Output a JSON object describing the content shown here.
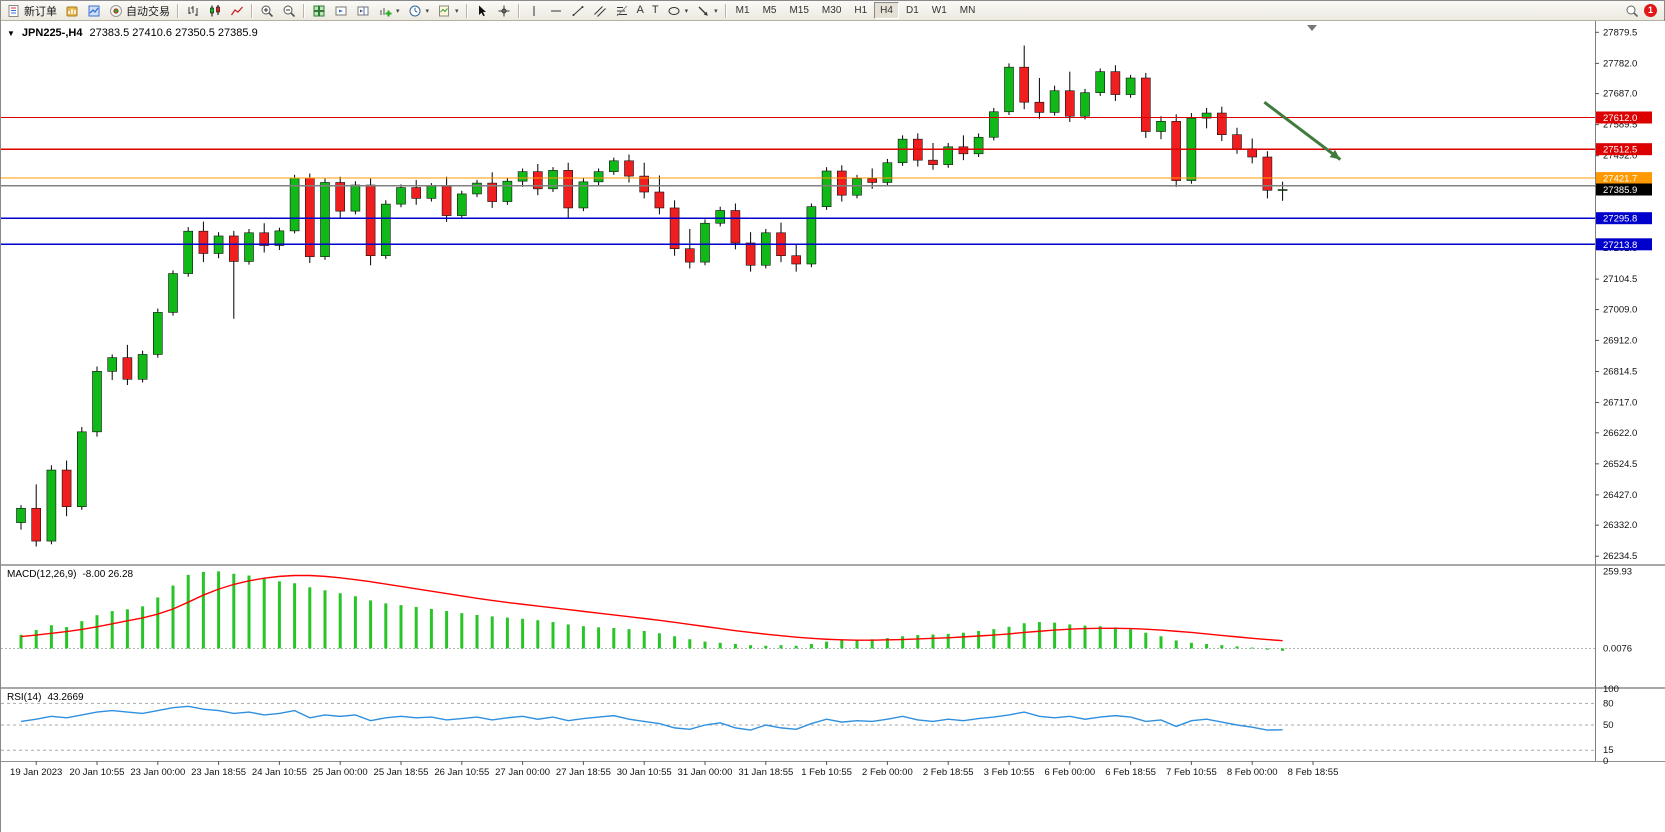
{
  "toolbar": {
    "new_order_label": "新订单",
    "auto_trading_label": "自动交易",
    "timeframes": [
      "M1",
      "M5",
      "M15",
      "M30",
      "H1",
      "H4",
      "D1",
      "W1",
      "MN"
    ],
    "active_timeframe": "H4",
    "notification_count": "1"
  },
  "chart_data": {
    "type": "candlestick",
    "title": "JPN225-,H4",
    "ohlc_line": "27383.5 27410.6 27350.5 27385.9",
    "colors": {
      "up": "#10b818",
      "down": "#f01f1f",
      "wick": "#000000",
      "macd_histogram": "#28c428",
      "macd_signal": "#ff0000",
      "rsi_line": "#2f90e0",
      "arrow": "#3f7a3f"
    },
    "price_pane": {
      "ylim": [
        26210,
        27915
      ],
      "axis_ticks": [
        27879.5,
        27782.0,
        27687.0,
        27589.5,
        27492.0,
        27395.0,
        27299.0,
        27201.5,
        27104.5,
        27009.0,
        26912.0,
        26814.5,
        26717.0,
        26622.0,
        26524.5,
        26427.0,
        26332.0,
        26234.5
      ],
      "lines": [
        {
          "value": 27612.0,
          "color": "#dd0000",
          "role": "resistance"
        },
        {
          "value": 27512.5,
          "color": "#dd0000",
          "role": "resistance"
        },
        {
          "value": 27421.7,
          "color": "#ff9900",
          "role": "pivot"
        },
        {
          "value": 27398.0,
          "color": "#808080",
          "role": "price-line",
          "badge": false
        },
        {
          "value": 27385.9,
          "color": "#000000",
          "role": "last-price",
          "line": false
        },
        {
          "value": 27295.8,
          "color": "#0000cc",
          "role": "support"
        },
        {
          "value": 27213.8,
          "color": "#0000cc",
          "role": "support"
        }
      ],
      "candles": [
        [
          26340,
          26395,
          26318,
          26385
        ],
        [
          26385,
          26460,
          26265,
          26282
        ],
        [
          26282,
          26520,
          26272,
          26505
        ],
        [
          26505,
          26535,
          26360,
          26390
        ],
        [
          26390,
          26640,
          26380,
          26625
        ],
        [
          26625,
          26830,
          26610,
          26815
        ],
        [
          26815,
          26868,
          26788,
          26858
        ],
        [
          26858,
          26898,
          26772,
          26790
        ],
        [
          26790,
          26880,
          26780,
          26868
        ],
        [
          26868,
          27012,
          26858,
          27000
        ],
        [
          27000,
          27132,
          26990,
          27122
        ],
        [
          27122,
          27268,
          27112,
          27255
        ],
        [
          27255,
          27285,
          27158,
          27185
        ],
        [
          27185,
          27252,
          27170,
          27240
        ],
        [
          27240,
          27256,
          26980,
          27160
        ],
        [
          27160,
          27262,
          27150,
          27250
        ],
        [
          27250,
          27280,
          27188,
          27210
        ],
        [
          27210,
          27266,
          27196,
          27256
        ],
        [
          27256,
          27432,
          27248,
          27422
        ],
        [
          27422,
          27436,
          27155,
          27175
        ],
        [
          27175,
          27420,
          27165,
          27408
        ],
        [
          27408,
          27426,
          27298,
          27318
        ],
        [
          27318,
          27412,
          27308,
          27400
        ],
        [
          27400,
          27420,
          27148,
          27178
        ],
        [
          27178,
          27352,
          27168,
          27340
        ],
        [
          27340,
          27402,
          27330,
          27392
        ],
        [
          27392,
          27416,
          27338,
          27358
        ],
        [
          27358,
          27406,
          27348,
          27396
        ],
        [
          27396,
          27426,
          27284,
          27304
        ],
        [
          27304,
          27382,
          27294,
          27372
        ],
        [
          27372,
          27416,
          27362,
          27406
        ],
        [
          27406,
          27440,
          27328,
          27348
        ],
        [
          27348,
          27422,
          27338,
          27412
        ],
        [
          27412,
          27452,
          27394,
          27442
        ],
        [
          27442,
          27466,
          27368,
          27388
        ],
        [
          27388,
          27456,
          27378,
          27446
        ],
        [
          27446,
          27470,
          27298,
          27328
        ],
        [
          27328,
          27422,
          27318,
          27410
        ],
        [
          27410,
          27452,
          27400,
          27442
        ],
        [
          27442,
          27486,
          27432,
          27476
        ],
        [
          27476,
          27496,
          27408,
          27428
        ],
        [
          27428,
          27470,
          27358,
          27378
        ],
        [
          27378,
          27430,
          27308,
          27328
        ],
        [
          27328,
          27352,
          27178,
          27200
        ],
        [
          27200,
          27262,
          27138,
          27158
        ],
        [
          27158,
          27292,
          27148,
          27280
        ],
        [
          27280,
          27332,
          27270,
          27320
        ],
        [
          27320,
          27342,
          27198,
          27218
        ],
        [
          27218,
          27252,
          27128,
          27148
        ],
        [
          27148,
          27262,
          27138,
          27250
        ],
        [
          27250,
          27282,
          27158,
          27178
        ],
        [
          27178,
          27212,
          27128,
          27152
        ],
        [
          27152,
          27342,
          27142,
          27332
        ],
        [
          27332,
          27456,
          27322,
          27444
        ],
        [
          27444,
          27462,
          27348,
          27368
        ],
        [
          27368,
          27432,
          27358,
          27420
        ],
        [
          27420,
          27452,
          27388,
          27408
        ],
        [
          27408,
          27482,
          27398,
          27470
        ],
        [
          27470,
          27556,
          27460,
          27544
        ],
        [
          27544,
          27562,
          27458,
          27478
        ],
        [
          27478,
          27532,
          27448,
          27464
        ],
        [
          27464,
          27532,
          27454,
          27520
        ],
        [
          27520,
          27556,
          27478,
          27498
        ],
        [
          27498,
          27562,
          27488,
          27550
        ],
        [
          27550,
          27642,
          27540,
          27630
        ],
        [
          27630,
          27782,
          27620,
          27770
        ],
        [
          27770,
          27838,
          27638,
          27660
        ],
        [
          27660,
          27736,
          27608,
          27628
        ],
        [
          27628,
          27712,
          27618,
          27696
        ],
        [
          27696,
          27756,
          27598,
          27616
        ],
        [
          27616,
          27702,
          27606,
          27690
        ],
        [
          27690,
          27766,
          27680,
          27756
        ],
        [
          27756,
          27776,
          27664,
          27684
        ],
        [
          27684,
          27746,
          27674,
          27736
        ],
        [
          27736,
          27752,
          27548,
          27568
        ],
        [
          27568,
          27616,
          27544,
          27600
        ],
        [
          27600,
          27622,
          27394,
          27414
        ],
        [
          27414,
          27626,
          27404,
          27610
        ],
        [
          27610,
          27642,
          27578,
          27626
        ],
        [
          27626,
          27646,
          27538,
          27558
        ],
        [
          27558,
          27580,
          27498,
          27514
        ],
        [
          27514,
          27546,
          27468,
          27488
        ],
        [
          27488,
          27506,
          27358,
          27383.5
        ],
        [
          27383.5,
          27410.6,
          27350.5,
          27385.9
        ]
      ]
    },
    "macd_pane": {
      "label": "MACD(12,26,9)",
      "values_text": "-8.00 26.28",
      "ylim": [
        -130,
        278
      ],
      "axis_ticks": [
        {
          "label": "259.93",
          "value": 259.93
        },
        {
          "label": "0.0076",
          "value": 0
        }
      ],
      "histogram": [
        46,
        62,
        78,
        72,
        92,
        112,
        126,
        132,
        142,
        172,
        212,
        248,
        258,
        259.9,
        252,
        246,
        236,
        226,
        220,
        206,
        196,
        186,
        176,
        162,
        152,
        146,
        140,
        133,
        126,
        119,
        113,
        108,
        104,
        100,
        95,
        89,
        81,
        75,
        71,
        69,
        65,
        59,
        51,
        41,
        31,
        23,
        19,
        15,
        11,
        9,
        11,
        9,
        15,
        23,
        27,
        29,
        31,
        35,
        41,
        45,
        47,
        49,
        53,
        59,
        65,
        73,
        85,
        89,
        87,
        81,
        77,
        75,
        71,
        65,
        53,
        41,
        27,
        19,
        15,
        11,
        7,
        3,
        -4,
        -8
      ],
      "signal": [
        40,
        45,
        51,
        57,
        64,
        73,
        83,
        93,
        103,
        116,
        133,
        156,
        180,
        200,
        216,
        228,
        237,
        243,
        246,
        246,
        243,
        238,
        232,
        225,
        217,
        209,
        201,
        193,
        185,
        177,
        169,
        162,
        155,
        149,
        143,
        137,
        131,
        125,
        119,
        113,
        107,
        101,
        95,
        88,
        81,
        74,
        67,
        60,
        54,
        48,
        43,
        38,
        34,
        31,
        29,
        28,
        28,
        29,
        30,
        32,
        34,
        36,
        39,
        42,
        45,
        49,
        54,
        58,
        62,
        65,
        67,
        68,
        68,
        67,
        65,
        62,
        58,
        54,
        49,
        44,
        39,
        34,
        30,
        26.3
      ]
    },
    "rsi_pane": {
      "label": "RSI(14)",
      "value_text": "43.2669",
      "ylim": [
        0,
        100
      ],
      "levels": [
        80,
        50,
        15
      ],
      "axis_ticks": [
        100,
        80,
        50,
        15,
        0
      ],
      "values": [
        55,
        58,
        62,
        60,
        64,
        68,
        70,
        68,
        66,
        70,
        74,
        76,
        72,
        70,
        66,
        68,
        64,
        66,
        70,
        60,
        64,
        62,
        64,
        56,
        60,
        62,
        60,
        61,
        57,
        59,
        61,
        57,
        60,
        62,
        58,
        61,
        56,
        59,
        61,
        63,
        58,
        55,
        52,
        46,
        44,
        50,
        53,
        46,
        43,
        50,
        46,
        44,
        52,
        58,
        54,
        56,
        55,
        58,
        62,
        57,
        55,
        58,
        56,
        59,
        61,
        64,
        68,
        62,
        60,
        62,
        58,
        61,
        63,
        61,
        55,
        57,
        48,
        56,
        58,
        54,
        50,
        47,
        43,
        43.3
      ]
    },
    "time_axis": {
      "labels": [
        "19 Jan 2023",
        "20 Jan 10:55",
        "23 Jan 00:00",
        "23 Jan 18:55",
        "24 Jan 10:55",
        "25 Jan 00:00",
        "25 Jan 18:55",
        "26 Jan 10:55",
        "27 Jan 00:00",
        "27 Jan 18:55",
        "30 Jan 10:55",
        "31 Jan 00:00",
        "31 Jan 18:55",
        "1 Feb 10:55",
        "2 Feb 00:00",
        "2 Feb 18:55",
        "3 Feb 10:55",
        "6 Feb 00:00",
        "6 Feb 18:55",
        "7 Feb 10:55",
        "8 Feb 00:00",
        "8 Feb 18:55"
      ],
      "first_label_candle": 1,
      "candles_per_label": 4
    },
    "arrow_annotation": {
      "from_index": 81.8,
      "from_price": 27660,
      "to_index": 86.8,
      "to_price": 27480
    }
  }
}
